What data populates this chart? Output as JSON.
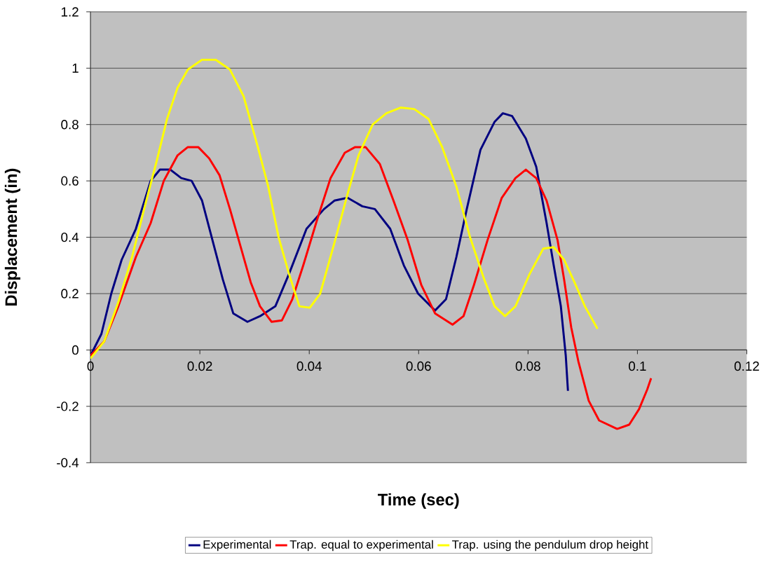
{
  "chart_data": {
    "type": "line",
    "xlabel": "Time (sec)",
    "ylabel": "Displacement (in)",
    "xlim": [
      0,
      0.12
    ],
    "ylim": [
      -0.4,
      1.2
    ],
    "xticks": [
      0,
      0.02,
      0.04,
      0.06,
      0.08,
      0.1,
      0.12
    ],
    "yticks": [
      -0.4,
      -0.2,
      0,
      0.2,
      0.4,
      0.6,
      0.8,
      1,
      1.2
    ],
    "grid": "y",
    "legend": "bottom",
    "marker": "none",
    "line_style": "solid",
    "series": [
      {
        "name": "Experimental",
        "color": "#000080",
        "x": [
          0,
          0.002,
          0.0038,
          0.0057,
          0.0083,
          0.011,
          0.0127,
          0.0146,
          0.0166,
          0.0185,
          0.0204,
          0.0223,
          0.0242,
          0.0261,
          0.0287,
          0.031,
          0.0338,
          0.0363,
          0.0395,
          0.0427,
          0.0446,
          0.047,
          0.0497,
          0.052,
          0.0548,
          0.0573,
          0.0599,
          0.063,
          0.065,
          0.0669,
          0.0688,
          0.0713,
          0.0739,
          0.0754,
          0.0771,
          0.0796,
          0.0815,
          0.0834,
          0.0847,
          0.086,
          0.0869,
          0.0873
        ],
        "values": [
          -0.02,
          0.057,
          0.2,
          0.32,
          0.43,
          0.6,
          0.64,
          0.64,
          0.61,
          0.6,
          0.53,
          0.39,
          0.25,
          0.13,
          0.1,
          0.12,
          0.155,
          0.27,
          0.43,
          0.5,
          0.53,
          0.54,
          0.51,
          0.5,
          0.43,
          0.3,
          0.2,
          0.14,
          0.18,
          0.33,
          0.5,
          0.71,
          0.81,
          0.84,
          0.83,
          0.75,
          0.65,
          0.45,
          0.3,
          0.155,
          -0.02,
          -0.145
        ]
      },
      {
        "name": "Trap. equal to experimental",
        "color": "#ff0000",
        "x": [
          0,
          0.0025,
          0.0051,
          0.0083,
          0.011,
          0.0134,
          0.0159,
          0.0178,
          0.0197,
          0.0217,
          0.0236,
          0.0255,
          0.0274,
          0.0293,
          0.031,
          0.0331,
          0.035,
          0.0369,
          0.0389,
          0.0414,
          0.0439,
          0.0465,
          0.0484,
          0.0503,
          0.0529,
          0.0554,
          0.058,
          0.0605,
          0.063,
          0.0662,
          0.0682,
          0.0701,
          0.0726,
          0.0752,
          0.0777,
          0.0796,
          0.0815,
          0.0834,
          0.0854,
          0.0866,
          0.0879,
          0.0892,
          0.0911,
          0.093,
          0.0963,
          0.0985,
          0.1003,
          0.1018,
          0.1025
        ],
        "values": [
          -0.02,
          0.03,
          0.155,
          0.33,
          0.45,
          0.6,
          0.69,
          0.72,
          0.72,
          0.68,
          0.62,
          0.5,
          0.37,
          0.24,
          0.155,
          0.1,
          0.105,
          0.18,
          0.3,
          0.46,
          0.61,
          0.7,
          0.72,
          0.72,
          0.66,
          0.53,
          0.39,
          0.23,
          0.13,
          0.09,
          0.12,
          0.23,
          0.39,
          0.54,
          0.61,
          0.64,
          0.61,
          0.53,
          0.39,
          0.25,
          0.08,
          -0.04,
          -0.18,
          -0.25,
          -0.28,
          -0.265,
          -0.21,
          -0.14,
          -0.1
        ]
      },
      {
        "name": "Trap. using the pendulum drop height",
        "color": "#ffff00",
        "x": [
          0,
          0.0025,
          0.0051,
          0.0076,
          0.0102,
          0.0121,
          0.014,
          0.0159,
          0.0178,
          0.0204,
          0.0229,
          0.0255,
          0.028,
          0.0306,
          0.0325,
          0.0344,
          0.0363,
          0.0382,
          0.0401,
          0.042,
          0.0446,
          0.0471,
          0.049,
          0.0516,
          0.0541,
          0.0567,
          0.0592,
          0.0618,
          0.0643,
          0.0669,
          0.0694,
          0.072,
          0.0739,
          0.0758,
          0.0777,
          0.0803,
          0.0828,
          0.0847,
          0.0866,
          0.0885,
          0.0904,
          0.0927
        ],
        "values": [
          -0.03,
          0.03,
          0.17,
          0.33,
          0.53,
          0.67,
          0.82,
          0.93,
          0.995,
          1.03,
          1.03,
          0.995,
          0.9,
          0.72,
          0.58,
          0.4,
          0.27,
          0.155,
          0.15,
          0.2,
          0.38,
          0.56,
          0.69,
          0.8,
          0.84,
          0.86,
          0.855,
          0.82,
          0.72,
          0.58,
          0.4,
          0.25,
          0.155,
          0.12,
          0.155,
          0.27,
          0.36,
          0.365,
          0.32,
          0.24,
          0.155,
          0.075
        ]
      }
    ]
  }
}
